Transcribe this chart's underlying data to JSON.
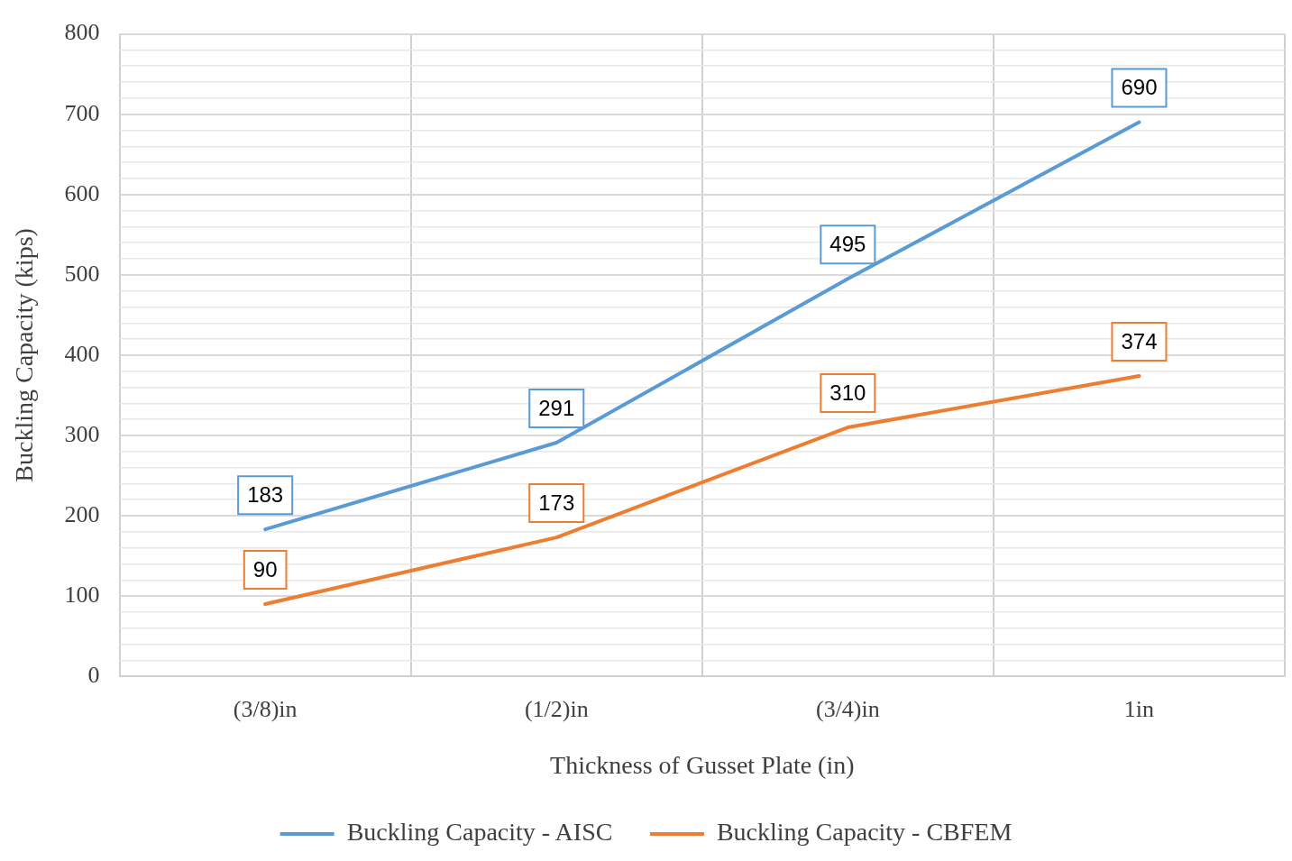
{
  "chart_data": {
    "type": "line",
    "xlabel": "Thickness of Gusset Plate (in)",
    "ylabel": "Buckling Capacity (kips)",
    "categories": [
      "(3/8)in",
      "(1/2)in",
      "(3/4)in",
      "1in"
    ],
    "series": [
      {
        "name": "Buckling Capacity - AISC",
        "color": "#5b9bd5",
        "values": [
          183,
          291,
          495,
          690
        ]
      },
      {
        "name": "Buckling Capacity - CBFEM",
        "color": "#ed7d31",
        "values": [
          90,
          173,
          310,
          374
        ]
      }
    ],
    "ylim": [
      0,
      800
    ],
    "yticks": [
      0,
      {
        "value": 20,
        "label": null
      },
      {
        "value": 40,
        "label": null
      },
      {
        "value": 60,
        "label": null
      },
      {
        "value": 80,
        "label": null
      },
      100,
      {
        "value": 120,
        "label": null
      },
      {
        "value": 140,
        "label": null
      },
      {
        "value": 160,
        "label": null
      },
      {
        "value": 180,
        "label": null
      },
      200,
      {
        "value": 220,
        "label": null
      },
      {
        "value": 240,
        "label": null
      },
      {
        "value": 260,
        "label": null
      },
      {
        "value": 280,
        "label": null
      },
      300,
      {
        "value": 320,
        "label": null
      },
      {
        "value": 340,
        "label": null
      },
      {
        "value": 360,
        "label": null
      },
      {
        "value": 380,
        "label": null
      },
      400,
      {
        "value": 420,
        "label": null
      },
      {
        "value": 440,
        "label": null
      },
      {
        "value": 460,
        "label": null
      },
      {
        "value": 480,
        "label": null
      },
      500,
      {
        "value": 520,
        "label": null
      },
      {
        "value": 540,
        "label": null
      },
      {
        "value": 560,
        "label": null
      },
      {
        "value": 580,
        "label": null
      },
      600,
      {
        "value": 620,
        "label": null
      },
      {
        "value": 640,
        "label": null
      },
      {
        "value": 660,
        "label": null
      },
      {
        "value": 680,
        "label": null
      },
      700,
      {
        "value": 720,
        "label": null
      },
      {
        "value": 740,
        "label": null
      },
      {
        "value": 760,
        "label": null
      },
      {
        "value": 780,
        "label": null
      },
      800
    ],
    "grid": true,
    "legend": "bottom",
    "marker": "none",
    "line_style": "solid",
    "data_labels": true
  }
}
